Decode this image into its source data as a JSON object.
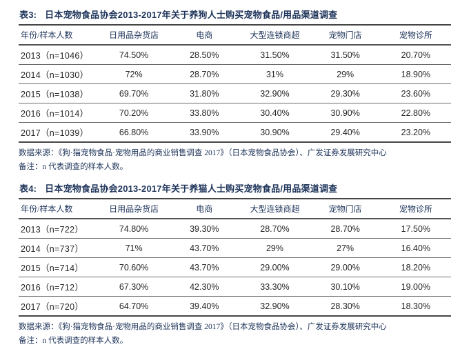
{
  "accent_color": "#1d3359",
  "text_color": "#262626",
  "tables": [
    {
      "tag": "表3:",
      "title": "日本宠物食品协会2013-2017年关于养狗人士购买宠物食品/用品渠道调查",
      "columns": [
        "年份/样本人数",
        "日用品杂货店",
        "电商",
        "大型连锁商超",
        "宠物门店",
        "宠物诊所"
      ],
      "rows": [
        [
          "2013（n=1046）",
          "74.50%",
          "28.50%",
          "31.50%",
          "31.50%",
          "20.70%"
        ],
        [
          "2014（n=1030）",
          "72%",
          "28.70%",
          "31%",
          "29%",
          "18.90%"
        ],
        [
          "2015（n=1038）",
          "69.70%",
          "31.80%",
          "32.90%",
          "29.30%",
          "23.60%"
        ],
        [
          "2016（n=1014）",
          "70.20%",
          "33.80%",
          "30.40%",
          "30.90%",
          "22.80%"
        ],
        [
          "2017（n=1039）",
          "66.80%",
          "33.90%",
          "30.90%",
          "29.40%",
          "23.20%"
        ]
      ],
      "source": "数据来源：《狗·猫宠物食品·宠物用品的商业销售调查 2017》（日本宠物食品协会）、广发证券发展研究中心",
      "remark": "备注：n 代表调查的样本人数。"
    },
    {
      "tag": "表4:",
      "title": "日本宠物食品协会2013-2017年关于养猫人士购买宠物食品/用品渠道调查",
      "columns": [
        "年份/样本人数",
        "日用品杂货店",
        "电商",
        "大型连锁商超",
        "宠物门店",
        "宠物诊所"
      ],
      "rows": [
        [
          "2013（n=722）",
          "74.80%",
          "39.30%",
          "28.70%",
          "28.70%",
          "17.50%"
        ],
        [
          "2014（n=737）",
          "71%",
          "43.70%",
          "29%",
          "27%",
          "16.40%"
        ],
        [
          "2015（n=714）",
          "70.60%",
          "43.70%",
          "29.00%",
          "29.00%",
          "18.20%"
        ],
        [
          "2016（n=712）",
          "67.30%",
          "42.30%",
          "33.30%",
          "30.10%",
          "19.00%"
        ],
        [
          "2017（n=720）",
          "64.70%",
          "39.40%",
          "32.90%",
          "28.30%",
          "18.30%"
        ]
      ],
      "source": "数据来源：《狗·猫宠物食品·宠物用品的商业销售调查 2017》（日本宠物食品协会）、广发证券发展研究中心",
      "remark": "备注：n 代表调查的样本人数。"
    }
  ]
}
